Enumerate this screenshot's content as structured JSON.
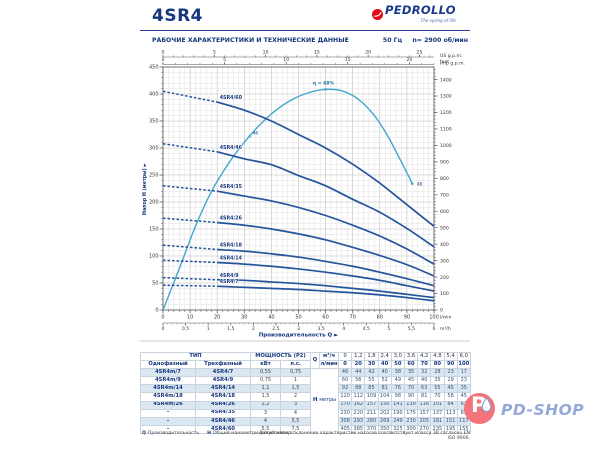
{
  "header": {
    "title": "4SR4",
    "brand": "PEDROLLO",
    "tagline": "The spring of life",
    "section_title": "РАБОЧИЕ ХАРАКТЕРИСТИКИ И ТЕХНИЧЕСКИЕ ДАННЫЕ",
    "frequency": "50 Гц",
    "speed": "n= 2900 об/мин"
  },
  "colors": {
    "brand_blue": "#16377e",
    "curve_blue": "#24549c",
    "efficiency_blue": "#44a7cd",
    "logo_red": "#e30613",
    "table_row_shade": "#dae7f1",
    "watermark_pink": "#f4747e",
    "watermark_text": "#94a9d9"
  },
  "chart_data": {
    "type": "line",
    "xlabel": "Производительность Q",
    "ylabel": "Напор H (метры)",
    "x_units": {
      "primary": "l/min",
      "secondary": "m³/h",
      "top_us": "US g.p.m.",
      "top_imp": "Imp g.p.m."
    },
    "y_units": {
      "right": "feet"
    },
    "xlim_lmin": [
      0,
      100
    ],
    "ylim_m": [
      0,
      450
    ],
    "grid": "on",
    "q_lmin": [
      0,
      20,
      30,
      40,
      50,
      60,
      70,
      80,
      90,
      100
    ],
    "series": [
      {
        "name": "4SR4/7",
        "h_m": [
          46,
          44,
          42,
          40,
          38,
          35,
          32,
          28,
          23,
          17
        ]
      },
      {
        "name": "4SR4/9",
        "h_m": [
          60,
          56,
          55,
          52,
          49,
          45,
          40,
          35,
          29,
          23
        ]
      },
      {
        "name": "4SR4/14",
        "h_m": [
          92,
          88,
          85,
          81,
          76,
          70,
          63,
          55,
          45,
          35
        ]
      },
      {
        "name": "4SR4/18",
        "h_m": [
          120,
          112,
          109,
          104,
          98,
          90,
          81,
          70,
          58,
          45
        ]
      },
      {
        "name": "4SR4/26",
        "h_m": [
          170,
          162,
          157,
          150,
          141,
          130,
          116,
          101,
          84,
          63
        ]
      },
      {
        "name": "4SR4/35",
        "h_m": [
          230,
          220,
          211,
          202,
          190,
          175,
          157,
          137,
          113,
          85
        ]
      },
      {
        "name": "4SR4/46",
        "h_m": [
          308,
          293,
          280,
          269,
          249,
          230,
          205,
          181,
          151,
          117
        ]
      },
      {
        "name": "4SR4/60",
        "h_m": [
          405,
          385,
          370,
          350,
          325,
          300,
          270,
          235,
          195,
          155
        ]
      }
    ],
    "efficiency": {
      "peak_label": "η = 68%",
      "mid_label": "46",
      "end_label": "48",
      "peak_q": 60,
      "mid_q": 32,
      "end_q": 92,
      "curve_qfrac": [
        [
          0,
          0
        ],
        [
          6,
          0.17
        ],
        [
          12,
          0.345
        ],
        [
          18,
          0.49
        ],
        [
          24,
          0.6
        ],
        [
          30,
          0.69
        ],
        [
          36,
          0.765
        ],
        [
          42,
          0.825
        ],
        [
          48,
          0.868
        ],
        [
          54,
          0.895
        ],
        [
          60,
          0.908
        ],
        [
          66,
          0.902
        ],
        [
          72,
          0.868
        ],
        [
          78,
          0.8
        ],
        [
          83,
          0.715
        ],
        [
          87,
          0.63
        ],
        [
          90,
          0.565
        ],
        [
          92,
          0.52
        ]
      ]
    },
    "axes": {
      "y_m_ticks": [
        0,
        50,
        100,
        150,
        200,
        250,
        300,
        350,
        400,
        450
      ],
      "y_feet_ticks": [
        0,
        100,
        200,
        300,
        400,
        500,
        600,
        700,
        800,
        900,
        1000,
        1100,
        1200,
        1300,
        1400
      ],
      "x_lmin_ticks": [
        0,
        10,
        20,
        30,
        40,
        50,
        60,
        70,
        80,
        90,
        100
      ],
      "x_m3h_labels": [
        "0",
        "0,5",
        "1",
        "1,5",
        "2",
        "2,5",
        "3",
        "3,5",
        "4",
        "4,5",
        "5",
        "5,5",
        "6"
      ],
      "us_gpm_ticks": [
        0,
        5,
        10,
        15,
        20,
        25
      ],
      "imp_gpm_ticks": [
        0,
        5,
        10,
        15,
        20
      ]
    }
  },
  "table": {
    "headers": {
      "type": "ТИП",
      "single_phase": "Однофазный",
      "three_phase": "Трехфазный",
      "power": "МОЩНОСТЬ (P2)",
      "kw": "кВт",
      "hp": "л.с.",
      "q": "Q",
      "m3h": "м³/ч",
      "lmin": "л/мин",
      "h": "Н",
      "meters": "метры"
    },
    "q_m3h": [
      "0",
      "1,2",
      "1,8",
      "2,4",
      "3,0",
      "3,6",
      "4,2",
      "4,8",
      "5,4",
      "6,0"
    ],
    "q_lmin": [
      "0",
      "20",
      "30",
      "40",
      "50",
      "60",
      "70",
      "80",
      "90",
      "100"
    ],
    "rows": [
      {
        "single": "4SR4m/7",
        "three": "4SR4/7",
        "kw": "0,55",
        "hp": "0,75"
      },
      {
        "single": "4SR4m/9",
        "three": "4SR4/9",
        "kw": "0,75",
        "hp": "1"
      },
      {
        "single": "4SR4m/14",
        "three": "4SR4/14",
        "kw": "1,1",
        "hp": "1,5"
      },
      {
        "single": "4SR4m/18",
        "three": "4SR4/18",
        "kw": "1,5",
        "hp": "2"
      },
      {
        "single": "4SR4m/26",
        "three": "4SR4/26",
        "kw": "2,2",
        "hp": "3"
      },
      {
        "single": "–",
        "three": "4SR4/35",
        "kw": "3",
        "hp": "4"
      },
      {
        "single": "–",
        "three": "4SR4/46",
        "kw": "4",
        "hp": "5,5"
      },
      {
        "single": "–",
        "three": "4SR4/60",
        "kw": "5,5",
        "hp": "7,5"
      }
    ]
  },
  "footnotes": {
    "q_label": "Q",
    "q_text": "Производительность",
    "h_label": "Н",
    "h_text": "Общий манометрический напор",
    "tolerance": "Допустимое отклонение характеристик насосов соответствует классу 3В согласно EN ISO 9906."
  },
  "watermark": {
    "letter": "P",
    "name": "PD-SHOP"
  }
}
